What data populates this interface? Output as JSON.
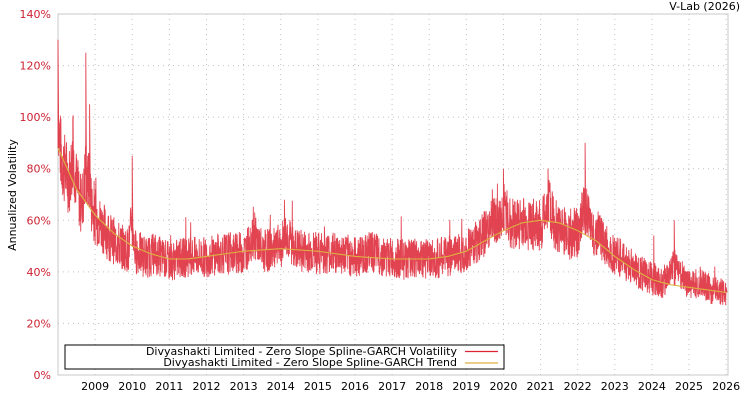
{
  "credit": "V-Lab (2026)",
  "chart_data": {
    "type": "line",
    "title": "",
    "xlabel": "",
    "ylabel": "Annualized Volatility",
    "ylim": [
      0,
      140
    ],
    "xlim": [
      2008.0,
      2026.05
    ],
    "y_ticks": [
      "0%",
      "20%",
      "40%",
      "60%",
      "80%",
      "100%",
      "120%",
      "140%"
    ],
    "x_ticks": [
      "2009",
      "2010",
      "2011",
      "2012",
      "2013",
      "2014",
      "2015",
      "2016",
      "2017",
      "2018",
      "2019",
      "2020",
      "2021",
      "2022",
      "2023",
      "2024",
      "2025",
      "2026"
    ],
    "grid": true,
    "legend_position": "bottom-left inside",
    "series": [
      {
        "name": "Divyashakti Limited - Zero Slope Spline-GARCH Volatility",
        "color": "#dd2233",
        "x": [
          2008.0,
          2008.05,
          2008.1,
          2008.2,
          2008.3,
          2008.4,
          2008.5,
          2008.6,
          2008.7,
          2008.75,
          2008.8,
          2008.85,
          2008.9,
          2009.0,
          2009.1,
          2009.2,
          2009.3,
          2009.4,
          2009.5,
          2009.6,
          2009.7,
          2009.8,
          2009.9,
          2010.0,
          2010.05,
          2010.1,
          2010.2,
          2010.4,
          2010.6,
          2010.8,
          2011.0,
          2011.3,
          2011.6,
          2012.0,
          2012.3,
          2012.7,
          2013.0,
          2013.3,
          2013.5,
          2013.8,
          2014.0,
          2014.1,
          2014.4,
          2014.8,
          2015.0,
          2015.4,
          2015.8,
          2016.0,
          2016.4,
          2016.8,
          2017.0,
          2017.4,
          2017.8,
          2018.0,
          2018.4,
          2018.8,
          2019.0,
          2019.3,
          2019.5,
          2019.7,
          2019.9,
          2020.0,
          2020.2,
          2020.4,
          2020.6,
          2020.8,
          2021.0,
          2021.2,
          2021.4,
          2021.6,
          2021.8,
          2022.0,
          2022.2,
          2022.4,
          2022.6,
          2022.8,
          2023.0,
          2023.3,
          2023.6,
          2024.0,
          2024.3,
          2024.6,
          2025.0,
          2025.3,
          2025.6,
          2025.9,
          2026.0
        ],
        "values": [
          130,
          95,
          80,
          75,
          70,
          100,
          80,
          60,
          75,
          125,
          85,
          105,
          70,
          60,
          58,
          55,
          50,
          48,
          46,
          45,
          44,
          42,
          44,
          85,
          50,
          45,
          44,
          42,
          48,
          45,
          42,
          46,
          47,
          45,
          48,
          47,
          46,
          63,
          47,
          48,
          46,
          68,
          48,
          47,
          46,
          48,
          47,
          45,
          52,
          47,
          46,
          44,
          46,
          44,
          46,
          47,
          50,
          56,
          60,
          72,
          65,
          80,
          62,
          60,
          58,
          56,
          52,
          80,
          55,
          52,
          50,
          54,
          90,
          55,
          62,
          50,
          48,
          45,
          40,
          38,
          36,
          60,
          35,
          42,
          33,
          32,
          34
        ]
      },
      {
        "name": "Divyashakti Limited - Zero Slope Spline-GARCH Trend",
        "color": "#ddb040",
        "x": [
          2008.0,
          2008.5,
          2009.0,
          2009.5,
          2010.0,
          2010.5,
          2011.0,
          2011.5,
          2012.0,
          2013.0,
          2014.0,
          2015.0,
          2015.5,
          2016.0,
          2017.0,
          2018.0,
          2018.5,
          2019.0,
          2019.5,
          2020.0,
          2020.5,
          2021.0,
          2021.5,
          2022.0,
          2022.5,
          2023.0,
          2023.5,
          2024.0,
          2024.5,
          2025.0,
          2025.5,
          2026.0
        ],
        "values": [
          88,
          72,
          62,
          55,
          50,
          47,
          45,
          45,
          46,
          48,
          49,
          48,
          47,
          46,
          45,
          45,
          46,
          48,
          52,
          56,
          59,
          60,
          59,
          56,
          52,
          46,
          41,
          37,
          35,
          34,
          33,
          32
        ]
      }
    ]
  },
  "legend": {
    "items": [
      {
        "label": "Divyashakti Limited - Zero Slope Spline-GARCH Volatility",
        "color": "#dd2233"
      },
      {
        "label": "Divyashakti Limited - Zero Slope Spline-GARCH Trend",
        "color": "#ddb040"
      }
    ]
  }
}
